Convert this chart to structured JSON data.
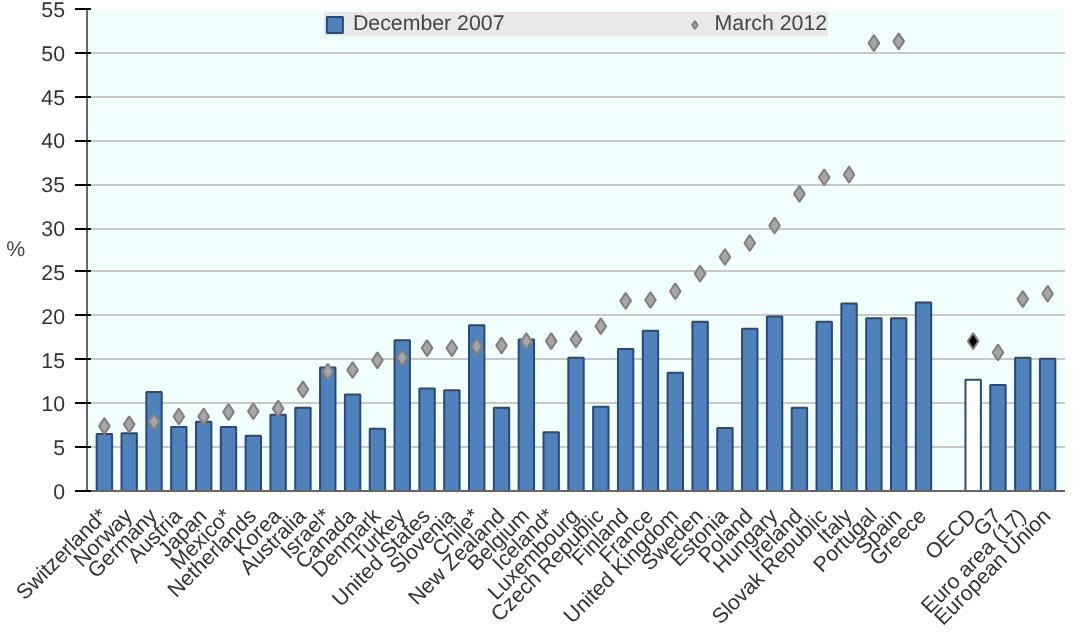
{
  "chart_data": {
    "type": "bar",
    "ylabel": "%",
    "categories": [
      "Switzerland*",
      "Norway",
      "Germany",
      "Austria",
      "Japan",
      "Mexico*",
      "Netherlands",
      "Korea",
      "Australia",
      "Israel*",
      "Canada",
      "Denmark",
      "Turkey",
      "United States",
      "Slovenia",
      "Chile*",
      "New Zealand",
      "Belgium",
      "Iceland*",
      "Luxembourg",
      "Czech Republic",
      "Finland",
      "France",
      "United Kingdom",
      "Sweden",
      "Estonia",
      "Poland",
      "Hungary",
      "Ireland",
      "Slovak Republic",
      "Italy",
      "Portugal",
      "Spain",
      "Greece",
      null,
      "OECD",
      "G7",
      "Euro area (17)",
      "European Union"
    ],
    "series": [
      {
        "name": "December 2007",
        "color": "#4f81bd",
        "colors": [
          null,
          null,
          null,
          null,
          null,
          null,
          null,
          null,
          null,
          null,
          null,
          null,
          null,
          null,
          null,
          null,
          null,
          null,
          null,
          null,
          null,
          null,
          null,
          null,
          null,
          null,
          null,
          null,
          null,
          null,
          null,
          null,
          null,
          null,
          null,
          "#ffffff",
          null,
          null,
          null
        ],
        "values": [
          6.5,
          6.6,
          11.3,
          7.3,
          7.9,
          7.3,
          6.3,
          8.7,
          9.5,
          14.1,
          11.0,
          7.1,
          17.2,
          11.7,
          11.5,
          18.9,
          9.5,
          17.3,
          6.7,
          15.2,
          9.6,
          16.2,
          18.3,
          13.5,
          19.3,
          7.2,
          18.5,
          19.9,
          9.5,
          19.3,
          21.4,
          19.7,
          19.7,
          21.5,
          null,
          12.7,
          12.1,
          15.2,
          15.1
        ]
      },
      {
        "name": "March 2012",
        "type": "scatter",
        "marker": "diamond",
        "color": "#a6a6a6",
        "colors": [
          null,
          null,
          null,
          null,
          null,
          null,
          null,
          null,
          null,
          null,
          null,
          null,
          null,
          null,
          null,
          null,
          null,
          null,
          null,
          null,
          null,
          null,
          null,
          null,
          null,
          null,
          null,
          null,
          null,
          null,
          null,
          null,
          null,
          null,
          null,
          "#000000",
          null,
          null,
          null
        ],
        "values": [
          7.4,
          7.6,
          7.9,
          8.5,
          8.5,
          9.0,
          9.1,
          9.4,
          11.6,
          13.6,
          13.8,
          14.9,
          15.2,
          16.3,
          16.3,
          16.5,
          16.6,
          17.1,
          17.1,
          17.3,
          18.8,
          21.7,
          21.8,
          22.8,
          24.8,
          26.7,
          28.3,
          30.3,
          33.9,
          35.8,
          36.1,
          51.1,
          51.3,
          null,
          null,
          17.1,
          15.8,
          21.9,
          22.5
        ]
      }
    ],
    "ylim": [
      0,
      55
    ],
    "yticks": [
      0,
      5,
      10,
      15,
      20,
      25,
      30,
      35,
      40,
      45,
      50,
      55
    ],
    "grid": "y",
    "legend": "top"
  }
}
